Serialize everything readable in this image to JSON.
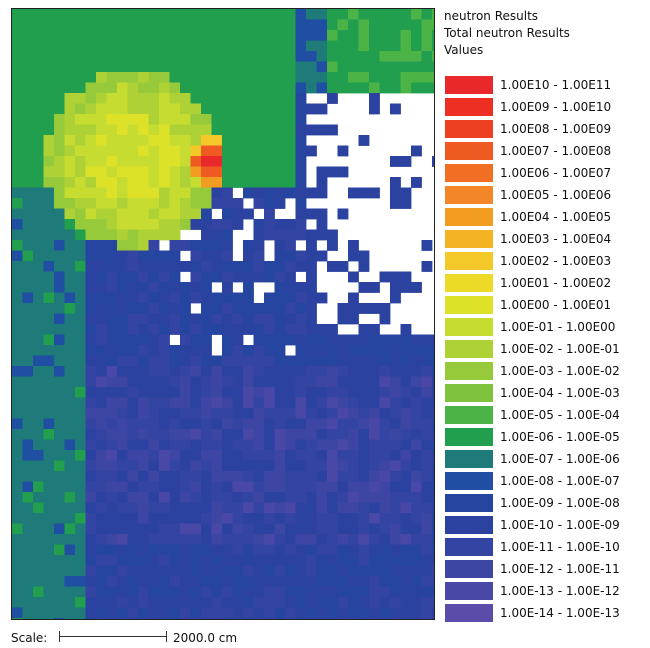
{
  "header": {
    "line1": "neutron Results",
    "line2": "Total neutron Results",
    "line3": "Values"
  },
  "legend": [
    {
      "label": "1.00E10 - 1.00E11",
      "color": "#e8282a"
    },
    {
      "label": "1.00E09 - 1.00E10",
      "color": "#ec2f22"
    },
    {
      "label": "1.00E08 - 1.00E09",
      "color": "#ee3f22"
    },
    {
      "label": "1.00E07 - 1.00E08",
      "color": "#ee5a22"
    },
    {
      "label": "1.00E06 - 1.00E07",
      "color": "#f06f24"
    },
    {
      "label": "1.00E05 - 1.00E06",
      "color": "#f28628"
    },
    {
      "label": "1.00E04 - 1.00E05",
      "color": "#f39c22"
    },
    {
      "label": "1.00E03 - 1.00E04",
      "color": "#f4b324"
    },
    {
      "label": "1.00E02 - 1.00E03",
      "color": "#f3c828"
    },
    {
      "label": "1.00E01 - 1.00E02",
      "color": "#ecda26"
    },
    {
      "label": "1.00E00 - 1.00E01",
      "color": "#dde228"
    },
    {
      "label": "1.00E-01 - 1.00E00",
      "color": "#c6dc30"
    },
    {
      "label": "1.00E-02 - 1.00E-01",
      "color": "#aed236"
    },
    {
      "label": "1.00E-03 - 1.00E-02",
      "color": "#97ca3a"
    },
    {
      "label": "1.00E-04 - 1.00E-03",
      "color": "#7ec23e"
    },
    {
      "label": "1.00E-05 - 1.00E-04",
      "color": "#4cb446"
    },
    {
      "label": "1.00E-06 - 1.00E-05",
      "color": "#219e4e"
    },
    {
      "label": "1.00E-07 - 1.00E-06",
      "color": "#1f7a7a"
    },
    {
      "label": "1.00E-08 - 1.00E-07",
      "color": "#1f4ea2"
    },
    {
      "label": "1.00E-09 - 1.00E-08",
      "color": "#2545a0"
    },
    {
      "label": "1.00E-10 - 1.00E-09",
      "color": "#2c42a0"
    },
    {
      "label": "1.00E-11 - 1.00E-10",
      "color": "#3444a2"
    },
    {
      "label": "1.00E-12 - 1.00E-11",
      "color": "#3e46a4"
    },
    {
      "label": "1.00E-13 - 1.00E-12",
      "color": "#4a48a6"
    },
    {
      "label": "1.00E-14 - 1.00E-13",
      "color": "#5a4ca8"
    }
  ],
  "scale": {
    "label": "Scale:",
    "value": "2000.0 cm"
  },
  "chart_data": {
    "type": "heatmap",
    "title": "neutron Results",
    "subtitle": "Total neutron Results",
    "legend_title": "Values",
    "colorbar": "log10 bins from 1.00E-14 to 1.00E11",
    "legend_placement": "right",
    "grid": false,
    "regions": [
      {
        "region": "source peak",
        "value_range": "1.00E10 - 1.00E11"
      },
      {
        "region": "hotspot ring",
        "value_range": "1.00E06 - 1.00E08"
      },
      {
        "region": "inner disc",
        "value_range": "1.00E00 - 1.00E02"
      },
      {
        "region": "outer disc",
        "value_range": "1.00E-02 - 1.00E00"
      },
      {
        "region": "top-left block",
        "value_range": "1.00E-06 - 1.00E-05"
      },
      {
        "region": "left band",
        "value_range": "1.00E-07 - 1.00E-06"
      },
      {
        "region": "lower field",
        "value_range": "1.00E-10 - 1.00E-08"
      },
      {
        "region": "void cells",
        "value_range": "no value"
      }
    ]
  }
}
